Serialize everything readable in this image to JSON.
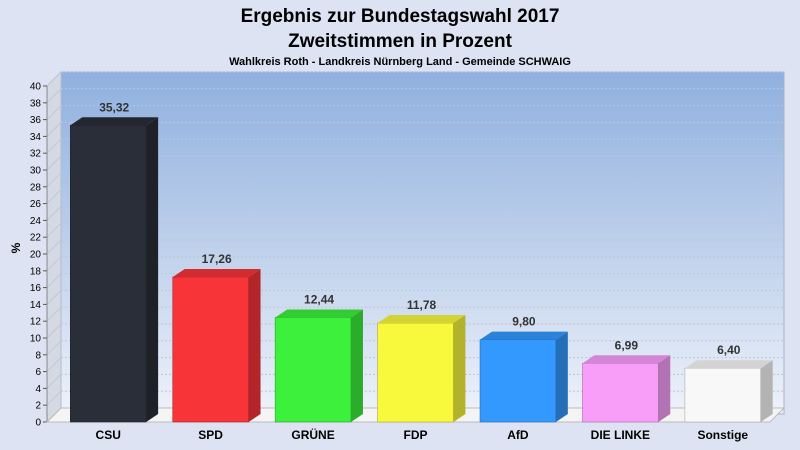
{
  "chart_data": {
    "type": "bar",
    "title": "Ergebnis zur Bundestagswahl 2017",
    "subtitle": "Zweitstimmen in Prozent",
    "caption": "Wahlkreis Roth - Landkreis Nürnberg Land - Gemeinde SCHWAIG",
    "ylabel": "%",
    "xlabel": "",
    "ylim": [
      0,
      40
    ],
    "ytick_step": 2,
    "grid": true,
    "categories": [
      "CSU",
      "SPD",
      "GRÜNE",
      "FDP",
      "AfD",
      "DIE LINKE",
      "Sonstige"
    ],
    "values": [
      35.32,
      17.26,
      12.44,
      11.78,
      9.8,
      6.99,
      6.4
    ],
    "value_labels": [
      "35,32",
      "17,26",
      "12,44",
      "11,78",
      "9,80",
      "6,99",
      "6,40"
    ],
    "colors": [
      "#2a2e38",
      "#f73438",
      "#3cf03c",
      "#f8f83c",
      "#3399ff",
      "#f89ef8",
      "#f8f8f8"
    ]
  }
}
